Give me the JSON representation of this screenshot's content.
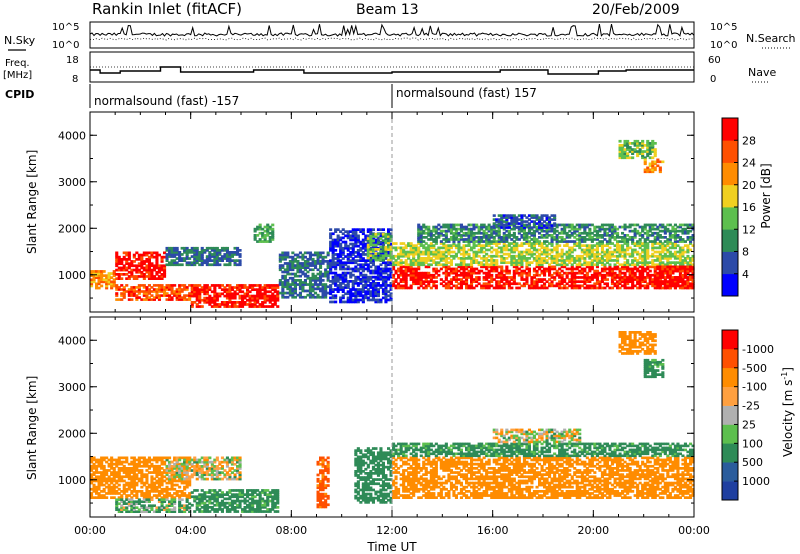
{
  "header": {
    "station": "Rankin Inlet (fitACF)",
    "beam": "Beam 13",
    "date": "20/Feb/2009"
  },
  "side_labels": {
    "nsky": "N.Sky",
    "freq_line1": "Freq.",
    "freq_line2": "[MHz]",
    "cpid": "CPID",
    "nsearch": "N.Search",
    "nave": "Nave"
  },
  "noise_axis": {
    "ticks_left": [
      "10^5",
      "10^0"
    ],
    "ticks_right": [
      "10^5",
      "10^0"
    ]
  },
  "freq_axis": {
    "ticks_left": [
      "18",
      "8"
    ],
    "ticks_right": [
      "60",
      "0"
    ]
  },
  "cpid_segments": [
    {
      "label": "normalsound (fast) -157",
      "start_hour": 0,
      "end_hour": 12
    },
    {
      "label": "normalsound (fast) 157",
      "start_hour": 12,
      "end_hour": 24
    }
  ],
  "colors": {
    "power_scale": [
      "#0000ff",
      "#2c4aa8",
      "#2e8b57",
      "#5dbf4e",
      "#f0d020",
      "#ff8c00",
      "#ff5000",
      "#ff0000"
    ],
    "velocity_scale": [
      "#1f3fa0",
      "#2a5c9c",
      "#2e8b57",
      "#5dbf4e",
      "#b0b0b0",
      "#ffa040",
      "#ff8c00",
      "#ff5000",
      "#ff0000"
    ]
  },
  "chart_data": [
    {
      "type": "heatmap",
      "title": "Power",
      "xlabel": "",
      "ylabel": "Slant Range [km]",
      "x_ticks": [
        "00:00",
        "04:00",
        "08:00",
        "12:00",
        "16:00",
        "20:00",
        "00:00"
      ],
      "xlim_hours": [
        0,
        24
      ],
      "ylim": [
        200,
        4500
      ],
      "y_ticks": [
        "1000",
        "2000",
        "3000",
        "4000"
      ],
      "colorbar_label": "Power [dB]",
      "colorbar_ticks": [
        "4",
        "8",
        "12",
        "16",
        "20",
        "24",
        "28"
      ],
      "colorbar_range": [
        0,
        32
      ],
      "regions": [
        {
          "t0": 0.0,
          "t1": 1.0,
          "r0": 700,
          "r1": 1100,
          "value": 22
        },
        {
          "t0": 1.0,
          "t1": 3.0,
          "r0": 900,
          "r1": 1500,
          "value": 30
        },
        {
          "t0": 1.0,
          "t1": 4.0,
          "r0": 450,
          "r1": 800,
          "value": 26
        },
        {
          "t0": 4.0,
          "t1": 7.5,
          "r0": 300,
          "r1": 800,
          "value": 30
        },
        {
          "t0": 3.0,
          "t1": 6.0,
          "r0": 1200,
          "r1": 1600,
          "value": 8
        },
        {
          "t0": 6.5,
          "t1": 7.3,
          "r0": 1700,
          "r1": 2100,
          "value": 12
        },
        {
          "t0": 7.5,
          "t1": 9.5,
          "r0": 500,
          "r1": 1500,
          "value": 8
        },
        {
          "t0": 9.5,
          "t1": 12.0,
          "r0": 400,
          "r1": 2000,
          "value": 4
        },
        {
          "t0": 11.0,
          "t1": 12.0,
          "r0": 1300,
          "r1": 1900,
          "value": 14
        },
        {
          "t0": 12.0,
          "t1": 24.0,
          "r0": 700,
          "r1": 1200,
          "value": 30
        },
        {
          "t0": 12.0,
          "t1": 24.0,
          "r0": 1200,
          "r1": 1700,
          "value": 16
        },
        {
          "t0": 13.0,
          "t1": 24.0,
          "r0": 1700,
          "r1": 2100,
          "value": 10
        },
        {
          "t0": 16.0,
          "t1": 18.5,
          "r0": 2000,
          "r1": 2300,
          "value": 6
        },
        {
          "t0": 21.0,
          "t1": 22.5,
          "r0": 3500,
          "r1": 3900,
          "value": 14
        },
        {
          "t0": 22.0,
          "t1": 22.8,
          "r0": 3200,
          "r1": 3500,
          "value": 22
        },
        {
          "t0": 22.5,
          "t1": 24.0,
          "r0": 700,
          "r1": 1200,
          "value": 30
        }
      ]
    },
    {
      "type": "heatmap",
      "title": "Velocity",
      "xlabel": "Time UT",
      "ylabel": "Slant Range [km]",
      "x_ticks": [
        "00:00",
        "04:00",
        "08:00",
        "12:00",
        "16:00",
        "20:00",
        "00:00"
      ],
      "xlim_hours": [
        0,
        24
      ],
      "ylim": [
        200,
        4500
      ],
      "y_ticks": [
        "1000",
        "2000",
        "3000",
        "4000"
      ],
      "colorbar_label": "Velocity [m s^-1]",
      "colorbar_ticks": [
        "1000",
        "500",
        "100",
        "25",
        "-25",
        "-100",
        "-500",
        "-1000"
      ],
      "regions": [
        {
          "t0": 0.0,
          "t1": 4.0,
          "r0": 600,
          "r1": 1500,
          "value": -300
        },
        {
          "t0": 1.0,
          "t1": 4.0,
          "r0": 300,
          "r1": 600,
          "value": 100
        },
        {
          "t0": 4.0,
          "t1": 7.5,
          "r0": 300,
          "r1": 800,
          "value": 200
        },
        {
          "t0": 3.0,
          "t1": 6.0,
          "r0": 1000,
          "r1": 1500,
          "value": -20
        },
        {
          "t0": 9.0,
          "t1": 9.5,
          "r0": 400,
          "r1": 1500,
          "value": -600
        },
        {
          "t0": 10.5,
          "t1": 12.0,
          "r0": 500,
          "r1": 1700,
          "value": 300
        },
        {
          "t0": 12.0,
          "t1": 24.0,
          "r0": 600,
          "r1": 1500,
          "value": -300
        },
        {
          "t0": 12.0,
          "t1": 24.0,
          "r0": 1500,
          "r1": 1800,
          "value": 200
        },
        {
          "t0": 16.0,
          "t1": 19.5,
          "r0": 1800,
          "r1": 2100,
          "value": -10
        },
        {
          "t0": 21.0,
          "t1": 22.5,
          "r0": 3700,
          "r1": 4200,
          "value": -300
        },
        {
          "t0": 22.0,
          "t1": 22.8,
          "r0": 3200,
          "r1": 3600,
          "value": 200
        }
      ]
    }
  ]
}
